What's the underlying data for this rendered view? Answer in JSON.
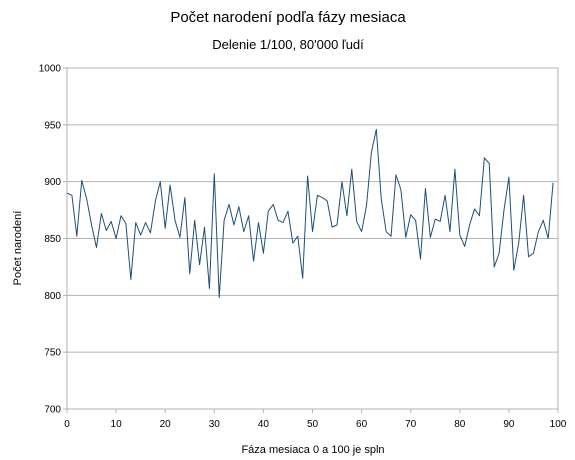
{
  "chart_data": {
    "type": "line",
    "title": "Počet narodení podľa fázy mesiaca",
    "subtitle": "Delenie 1/100, 80'000 ľudí",
    "xlabel": "Fáza mesiaca 0 a 100 je spln",
    "ylabel": "Počet narodení",
    "xlim": [
      0,
      100
    ],
    "ylim": [
      700,
      1000
    ],
    "x_ticks": [
      "0",
      "10",
      "20",
      "30",
      "40",
      "50",
      "60",
      "70",
      "80",
      "90",
      "100"
    ],
    "y_ticks": [
      "700",
      "750",
      "800",
      "850",
      "900",
      "950",
      "1000"
    ],
    "grid": "horizontal",
    "line_color": "#1f4e79",
    "x": [
      0,
      1,
      2,
      3,
      4,
      5,
      6,
      7,
      8,
      9,
      10,
      11,
      12,
      13,
      14,
      15,
      16,
      17,
      18,
      19,
      20,
      21,
      22,
      23,
      24,
      25,
      26,
      27,
      28,
      29,
      30,
      31,
      32,
      33,
      34,
      35,
      36,
      37,
      38,
      39,
      40,
      41,
      42,
      43,
      44,
      45,
      46,
      47,
      48,
      49,
      50,
      51,
      52,
      53,
      54,
      55,
      56,
      57,
      58,
      59,
      60,
      61,
      62,
      63,
      64,
      65,
      66,
      67,
      68,
      69,
      70,
      71,
      72,
      73,
      74,
      75,
      76,
      77,
      78,
      79,
      80,
      81,
      82,
      83,
      84,
      85,
      86,
      87,
      88,
      89,
      90,
      91,
      92,
      93,
      94,
      95,
      96,
      97,
      98,
      99
    ],
    "values": [
      890,
      888,
      852,
      901,
      885,
      862,
      842,
      872,
      857,
      865,
      850,
      870,
      863,
      814,
      864,
      853,
      864,
      855,
      883,
      900,
      859,
      897,
      866,
      851,
      886,
      819,
      866,
      827,
      860,
      806,
      907,
      798,
      866,
      880,
      862,
      878,
      856,
      870,
      830,
      864,
      837,
      874,
      880,
      866,
      864,
      874,
      846,
      852,
      815,
      905,
      856,
      888,
      886,
      883,
      860,
      862,
      900,
      870,
      911,
      865,
      856,
      879,
      926,
      946,
      885,
      856,
      852,
      906,
      893,
      851,
      871,
      866,
      832,
      894,
      851,
      867,
      865,
      888,
      856,
      911,
      853,
      843,
      862,
      876,
      870,
      921,
      916,
      825,
      837,
      875,
      904,
      822,
      846,
      888,
      834,
      837,
      856,
      866,
      850,
      899
    ]
  }
}
